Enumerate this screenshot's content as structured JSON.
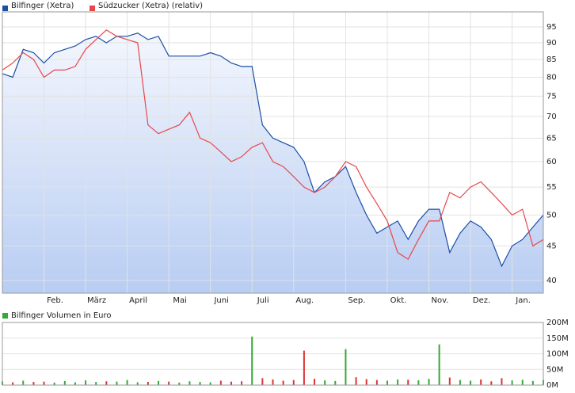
{
  "chart_data": [
    {
      "type": "line",
      "log_scale": true,
      "grid": true,
      "area": true,
      "categories": [
        null,
        null,
        null,
        null,
        "Feb.",
        null,
        null,
        null,
        "März",
        null,
        null,
        null,
        "April",
        null,
        null,
        null,
        "Mai",
        null,
        null,
        null,
        "Juni",
        null,
        null,
        null,
        "Juli",
        null,
        null,
        null,
        "Aug.",
        null,
        null,
        null,
        null,
        "Sep.",
        null,
        null,
        null,
        "Okt.",
        null,
        null,
        null,
        "Nov.",
        null,
        null,
        null,
        "Dez.",
        null,
        null,
        null,
        "Jan.",
        null,
        null,
        null
      ],
      "series": [
        {
          "name": "Bilfinger (Xetra)",
          "color": "#1a4fa8",
          "values": [
            81,
            80,
            88,
            87,
            84,
            87,
            88,
            89,
            91,
            92,
            90,
            92,
            92,
            93,
            91,
            92,
            86,
            86,
            86,
            86,
            87,
            86,
            84,
            83,
            83,
            68,
            65,
            64,
            63,
            60,
            54,
            56,
            57,
            59,
            54,
            50,
            47,
            48,
            49,
            46,
            49,
            51,
            51,
            44,
            47,
            49,
            48,
            46,
            42,
            45,
            46,
            48,
            50
          ]
        },
        {
          "name": "Südzucker (Xetra) (relativ)",
          "color": "#e8474a",
          "values": [
            82,
            84,
            87,
            85,
            80,
            82,
            82,
            83,
            88,
            91,
            94,
            92,
            91,
            90,
            68,
            66,
            67,
            68,
            71,
            65,
            64,
            62,
            60,
            61,
            63,
            64,
            60,
            59,
            57,
            55,
            54,
            55,
            57,
            60,
            59,
            55,
            52,
            49,
            44,
            43,
            46,
            49,
            49,
            54,
            53,
            55,
            56,
            54,
            52,
            50,
            51,
            45,
            46
          ]
        }
      ],
      "ylim": [
        38.3,
        100
      ],
      "yticks": [
        40,
        45,
        50,
        55,
        60,
        65,
        70,
        75,
        80,
        85,
        90,
        95
      ]
    },
    {
      "type": "bar",
      "grid": true,
      "series": [
        {
          "name": "Bilfinger Volumen in Euro",
          "color": "#33aa33",
          "down_color": "#dd3333",
          "values": [
            12,
            9,
            14,
            10,
            11,
            8,
            13,
            9,
            15,
            10,
            12,
            11,
            16,
            9,
            10,
            13,
            11,
            8,
            12,
            10,
            9,
            14,
            11,
            12,
            155,
            22,
            18,
            14,
            16,
            110,
            20,
            15,
            13,
            115,
            25,
            19,
            16,
            14,
            18,
            17,
            15,
            20,
            130,
            24,
            16,
            14,
            18,
            12,
            22,
            15,
            17,
            13,
            16
          ]
        }
      ],
      "ylim": [
        0,
        200
      ],
      "yticks": [
        {
          "value": 0,
          "label": "0M"
        },
        {
          "value": 50,
          "label": "50M"
        },
        {
          "value": 100,
          "label": "100M"
        },
        {
          "value": 150,
          "label": "150M"
        },
        {
          "value": 200,
          "label": "200M"
        }
      ]
    }
  ]
}
